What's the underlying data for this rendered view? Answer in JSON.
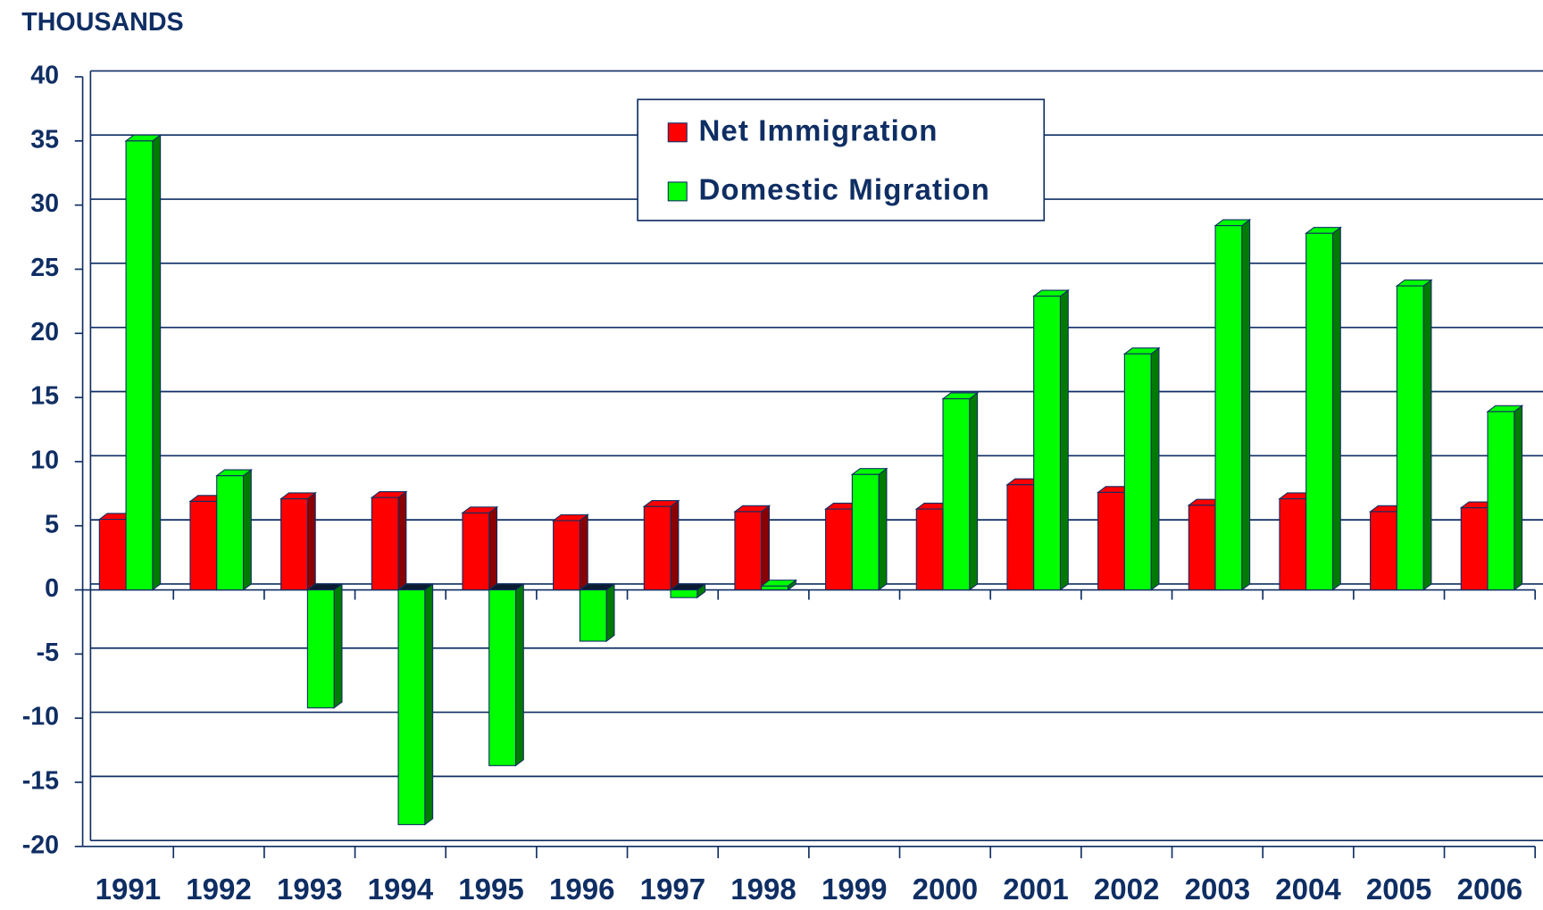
{
  "chart_data": {
    "type": "bar",
    "y_label": "THOUSANDS",
    "categories": [
      "1991",
      "1992",
      "1993",
      "1994",
      "1995",
      "1996",
      "1997",
      "1998",
      "1999",
      "2000",
      "2001",
      "2002",
      "2003",
      "2004",
      "2005",
      "2006"
    ],
    "series": [
      {
        "name": "Net Immigration",
        "color": "#ff0000",
        "values": [
          5.5,
          6.9,
          7.1,
          7.2,
          6.0,
          5.4,
          6.5,
          6.1,
          6.3,
          6.3,
          8.2,
          7.6,
          6.6,
          7.1,
          6.1,
          6.4
        ]
      },
      {
        "name": "Domestic Migration",
        "color": "#00ff00",
        "values": [
          35,
          8.9,
          -9.2,
          -18.3,
          -13.7,
          -4.0,
          -0.6,
          0.3,
          9.0,
          14.9,
          22.9,
          18.4,
          28.4,
          27.8,
          23.7,
          13.9
        ]
      }
    ],
    "ylim": [
      -20,
      40
    ],
    "yticks": [
      -20,
      -15,
      -10,
      -5,
      0,
      5,
      10,
      15,
      20,
      25,
      30,
      35,
      40
    ],
    "grid": true
  }
}
